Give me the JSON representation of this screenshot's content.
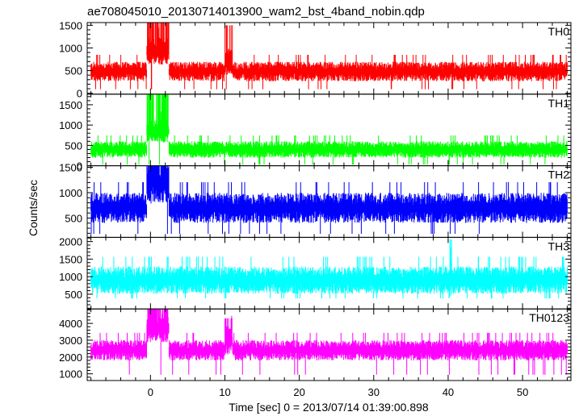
{
  "chart_data": {
    "type": "line",
    "title": "ae708045010_20130714013900_wam2_bst_4band_nobin.qdp",
    "xlabel": "Time [sec] 0 = 2013/07/14 01:39:00.898",
    "ylabel": "Counts/sec",
    "xlim": [
      -8.5,
      56.5
    ],
    "data_range": [
      -8,
      56
    ],
    "xticks": [
      0,
      10,
      20,
      30,
      40,
      50
    ],
    "grid": false,
    "panels": [
      {
        "name": "TH0",
        "color": "#ff0000",
        "ylim": [
          -20,
          1560
        ],
        "yticks": [
          0,
          500,
          1000,
          1500
        ],
        "baseline": 480,
        "noise": 160,
        "low": 90,
        "features": [
          {
            "x": [
              -0.5,
              2.5
            ],
            "add": 450,
            "spike": 1560
          },
          {
            "x": [
              10.0,
              11.0
            ],
            "add": 220,
            "spike": 1500
          }
        ]
      },
      {
        "name": "TH1",
        "color": "#00ff00",
        "ylim": [
          0,
          1760
        ],
        "yticks": [
          0,
          500,
          1000,
          1500
        ],
        "baseline": 400,
        "noise": 150,
        "low": 30,
        "features": [
          {
            "x": [
              -0.5,
              2.5
            ],
            "add": 450,
            "spike": 1760
          }
        ]
      },
      {
        "name": "TH2",
        "color": "#0000ff",
        "ylim": [
          120,
          1530
        ],
        "yticks": [
          500,
          1000,
          1500
        ],
        "baseline": 700,
        "noise": 220,
        "low": 190,
        "features": [
          {
            "x": [
              -0.5,
              2.5
            ],
            "add": 500,
            "spike": 1530
          }
        ]
      },
      {
        "name": "TH3",
        "color": "#00ffff",
        "ylim": [
          80,
          2120
        ],
        "yticks": [
          500,
          1000,
          1500,
          2000
        ],
        "baseline": 900,
        "noise": 290,
        "low": 380,
        "features": [
          {
            "x": [
              40.2,
              40.5
            ],
            "add": 0,
            "spike": 2060
          }
        ]
      },
      {
        "name": "TH0123",
        "color": "#ff00ff",
        "ylim": [
          600,
          4860
        ],
        "yticks": [
          1000,
          2000,
          3000,
          4000
        ],
        "baseline": 2400,
        "noise": 450,
        "low": 950,
        "features": [
          {
            "x": [
              -0.5,
              2.5
            ],
            "add": 1300,
            "spike": 4860
          },
          {
            "x": [
              10.0,
              11.0
            ],
            "add": 600,
            "spike": 4300
          }
        ]
      }
    ]
  }
}
